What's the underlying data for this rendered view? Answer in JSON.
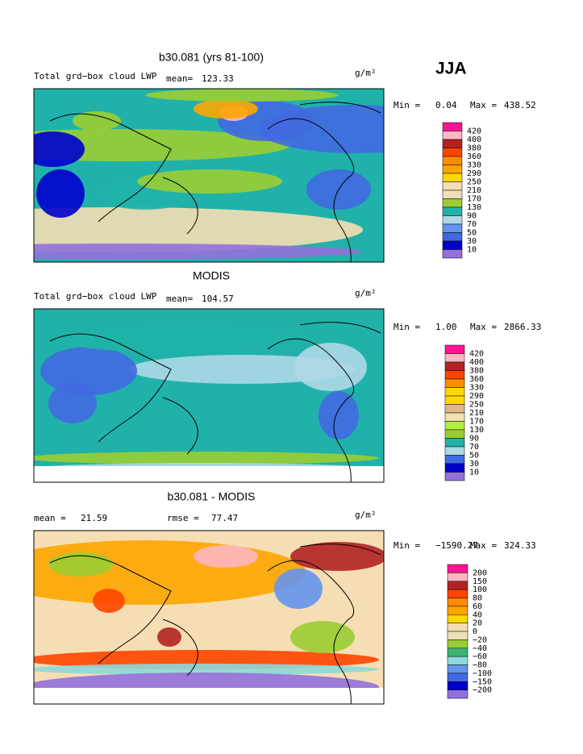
{
  "header": {
    "label": "JJA"
  },
  "panels": [
    {
      "title": "b30.081 (yrs 81-100)",
      "left_label": "Total grd−box cloud LWP",
      "stat1_label": "mean=",
      "stat1": "123.33",
      "units": "g/m²",
      "min_label": "Min =",
      "min": "0.04",
      "max_label": "Max =",
      "max": "438.52",
      "levels": [
        "420",
        "400",
        "380",
        "360",
        "330",
        "290",
        "250",
        "210",
        "170",
        "130",
        "90",
        "70",
        "50",
        "30",
        "10"
      ],
      "colors": [
        "#ff1493",
        "#ffb6c1",
        "#b22222",
        "#ff4500",
        "#ff8c00",
        "#ffa500",
        "#ffd700",
        "#f5deb3",
        "#eedfb8",
        "#9acd32",
        "#20b2aa",
        "#add8e6",
        "#6495ed",
        "#4169e1",
        "#0000cd",
        "#9370db"
      ]
    },
    {
      "title": "MODIS",
      "left_label": "Total grd−box cloud LWP",
      "stat1_label": "mean=",
      "stat1": "104.57",
      "units": "g/m²",
      "min_label": "Min =",
      "min": "1.00",
      "max_label": "Max =",
      "max": "2866.33",
      "levels": [
        "420",
        "400",
        "380",
        "360",
        "330",
        "290",
        "250",
        "210",
        "170",
        "130",
        "90",
        "70",
        "50",
        "30",
        "10"
      ],
      "colors": [
        "#ff1493",
        "#ffb6c1",
        "#b22222",
        "#ff4500",
        "#ff8c00",
        "#ffd700",
        "#ffd700",
        "#deb887",
        "#f5deb3",
        "#b3ee3a",
        "#9acd32",
        "#20b2aa",
        "#add8e6",
        "#4169e1",
        "#0000cd",
        "#9370db"
      ]
    },
    {
      "title": "b30.081 - MODIS",
      "stat1_label": "mean =",
      "stat1": "21.59",
      "stat2_label": "rmse =",
      "stat2": "77.47",
      "units": "g/m²",
      "min_label": "Min =",
      "min": "−1590.27",
      "max_label": "Max =",
      "max": "324.33",
      "levels": [
        "200",
        "150",
        "100",
        "80",
        "60",
        "40",
        "20",
        "0",
        "−20",
        "−40",
        "−60",
        "−80",
        "−100",
        "−150",
        "−200"
      ],
      "colors": [
        "#ff1493",
        "#ffb6c1",
        "#b22222",
        "#ff4500",
        "#ff8c00",
        "#ffa500",
        "#ffd700",
        "#f5deb3",
        "#eedfb8",
        "#9acd32",
        "#3cb371",
        "#8fd8d8",
        "#6495ed",
        "#4169e1",
        "#0000cd",
        "#9370db"
      ]
    }
  ]
}
